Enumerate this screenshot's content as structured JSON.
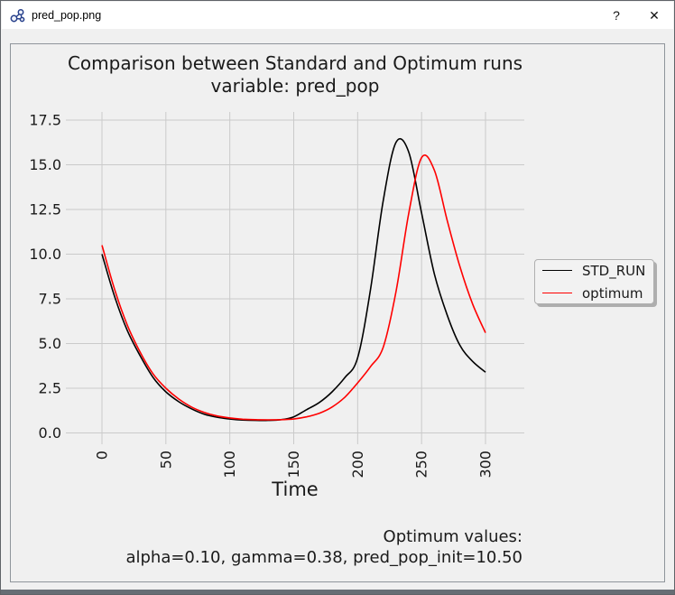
{
  "window": {
    "title": "pred_pop.png",
    "help_label": "?",
    "close_label": "✕"
  },
  "figure": {
    "legend": {
      "items": [
        {
          "label": "STD_RUN",
          "color": "#000000"
        },
        {
          "label": "optimum",
          "color": "#ff0000"
        }
      ]
    }
  },
  "colors": {
    "figure_background": "#f0f0f0",
    "titlebar_background": "#ffffff",
    "grid": "#cacaca",
    "std_run": "#000000",
    "optimum": "#ff0000",
    "bottom_strip": "#666d74"
  },
  "chart_data": {
    "type": "line",
    "title": "Comparison between Standard and Optimum runs",
    "subtitle": "variable: pred_pop",
    "xlabel": "Time",
    "ylabel": "",
    "x_ticks": [
      0,
      50,
      100,
      150,
      200,
      250,
      300
    ],
    "y_ticks": [
      "0.0",
      "2.5",
      "5.0",
      "7.5",
      "10.0",
      "12.5",
      "15.0",
      "17.5"
    ],
    "xlim": [
      -29,
      330
    ],
    "ylim": [
      -0.65,
      17.95
    ],
    "grid": true,
    "legend_position": "center right",
    "x": [
      0,
      10,
      20,
      30,
      40,
      50,
      60,
      70,
      80,
      90,
      100,
      110,
      120,
      130,
      140,
      150,
      160,
      170,
      180,
      190,
      200,
      210,
      220,
      230,
      240,
      250,
      260,
      270,
      280,
      290,
      300
    ],
    "series": [
      {
        "name": "STD_RUN",
        "color": "#000000",
        "values": [
          10.0,
          7.6,
          5.7,
          4.3,
          3.1,
          2.3,
          1.75,
          1.35,
          1.05,
          0.88,
          0.78,
          0.72,
          0.7,
          0.7,
          0.74,
          0.9,
          1.3,
          1.7,
          2.3,
          3.1,
          4.2,
          8.0,
          13.0,
          16.25,
          15.7,
          12.3,
          8.9,
          6.6,
          4.9,
          4.0,
          3.4
        ]
      },
      {
        "name": "optimum",
        "color": "#ff0000",
        "values": [
          10.5,
          8.0,
          6.0,
          4.5,
          3.3,
          2.5,
          1.9,
          1.45,
          1.15,
          0.95,
          0.84,
          0.77,
          0.74,
          0.73,
          0.74,
          0.78,
          0.9,
          1.1,
          1.45,
          2.0,
          2.8,
          3.7,
          4.8,
          7.9,
          12.3,
          15.4,
          14.7,
          11.9,
          9.3,
          7.2,
          5.6
        ]
      }
    ],
    "annotations": {
      "line1": "Optimum values:",
      "line2": "alpha=0.10, gamma=0.38, pred_pop_init=10.50"
    }
  }
}
